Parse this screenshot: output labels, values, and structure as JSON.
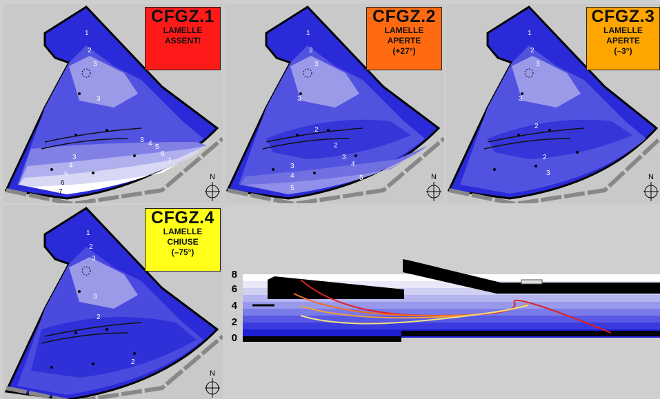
{
  "panels": [
    {
      "id": "cfgz1",
      "title": "CFGZ.1",
      "line1": "LAMELLE",
      "line2": "ASSENTI",
      "line3": "",
      "box_color": "#ff1a1a",
      "contours": [
        "1",
        "2",
        "3",
        "3",
        "3",
        "3",
        "4",
        "5",
        "6",
        "7",
        "4",
        "5",
        "6",
        "7"
      ]
    },
    {
      "id": "cfgz2",
      "title": "CFGZ.2",
      "line1": "LAMELLE",
      "line2": "APERTE",
      "line3": "(+27°)",
      "box_color": "#ff6a10",
      "contours": [
        "1",
        "2",
        "3",
        "3",
        "2",
        "2",
        "3",
        "4",
        "5",
        "3",
        "4",
        "5"
      ]
    },
    {
      "id": "cfgz3",
      "title": "CFGZ.3",
      "line1": "LAMELLE",
      "line2": "APERTE",
      "line3": "(–3°)",
      "box_color": "#ffa500",
      "contours": [
        "1",
        "2",
        "3",
        "3",
        "2",
        "2",
        "3"
      ]
    },
    {
      "id": "cfgz4",
      "title": "CFGZ.4",
      "line1": "LAMELLE",
      "line2": "CHIUSE",
      "line3": "(–75°)",
      "box_color": "#ffff1a",
      "contours": [
        "1",
        "2",
        "3",
        "3",
        "2",
        "2"
      ]
    }
  ],
  "north_label": "N",
  "section": {
    "y_ticks": [
      "8",
      "6",
      "4",
      "2",
      "0"
    ],
    "band_colors": [
      "#ffffff",
      "#dcdcf5",
      "#b8b8f0",
      "#9a9aeb",
      "#7c7ce8",
      "#5a5ae5",
      "#3a3ae0",
      "#1e1ed5"
    ],
    "curve_colors": [
      "#e02020",
      "#f07020",
      "#f0a040",
      "#f0e080"
    ]
  }
}
